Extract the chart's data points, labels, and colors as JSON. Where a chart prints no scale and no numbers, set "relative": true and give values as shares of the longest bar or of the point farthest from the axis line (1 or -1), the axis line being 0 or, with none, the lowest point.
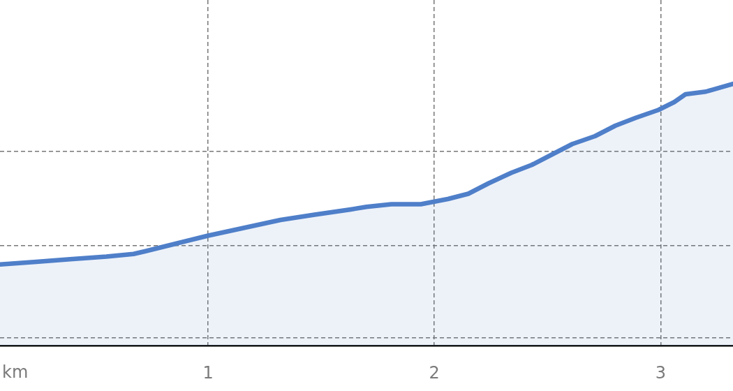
{
  "chart_data": {
    "type": "area",
    "xlabel": "km",
    "relative": true,
    "grid": true,
    "marker": "none",
    "color": "#4f7fc9",
    "xlim": [
      0.08,
      3.32
    ],
    "xticks": [
      1,
      2,
      3
    ],
    "x": [
      0.08,
      0.24,
      0.39,
      0.55,
      0.67,
      0.72,
      0.86,
      1.0,
      1.16,
      1.32,
      1.47,
      1.63,
      1.7,
      1.81,
      1.94,
      2.06,
      2.15,
      2.24,
      2.34,
      2.43,
      2.52,
      2.61,
      2.71,
      2.8,
      2.89,
      2.99,
      3.06,
      3.11,
      3.2,
      3.32
    ],
    "values": [
      0.31,
      0.32,
      0.33,
      0.34,
      0.35,
      0.36,
      0.39,
      0.42,
      0.45,
      0.48,
      0.5,
      0.52,
      0.53,
      0.54,
      0.54,
      0.56,
      0.58,
      0.62,
      0.66,
      0.69,
      0.73,
      0.77,
      0.8,
      0.84,
      0.87,
      0.9,
      0.93,
      0.96,
      0.97,
      1.0
    ]
  }
}
